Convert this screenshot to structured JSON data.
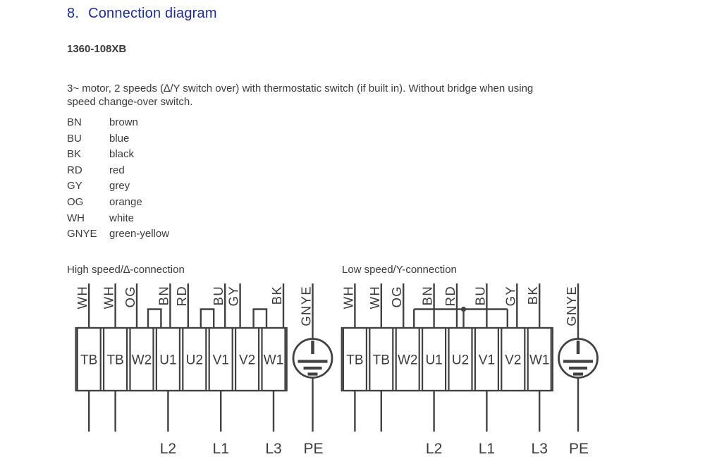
{
  "title": {
    "number": "8.",
    "text": "Connection diagram"
  },
  "model": "1360-108XB",
  "description": "3~ motor, 2 speeds (∆/Y switch over) with thermostatic switch (if built in). Without bridge when using speed change-over switch.",
  "legend": [
    {
      "code": "BN",
      "name": "brown"
    },
    {
      "code": "BU",
      "name": "blue"
    },
    {
      "code": "BK",
      "name": "black"
    },
    {
      "code": "RD",
      "name": "red"
    },
    {
      "code": "GY",
      "name": "grey"
    },
    {
      "code": "OG",
      "name": "orange"
    },
    {
      "code": "WH",
      "name": "white"
    },
    {
      "code": "GNYE",
      "name": "green-yellow"
    }
  ],
  "colors": {
    "accent_blue": "#1b2da0",
    "text": "#3b3b3b",
    "line": "#414141"
  },
  "diagrams": [
    {
      "heading": "High speed/∆-connection",
      "connection": "delta",
      "terminals": [
        "TB",
        "TB",
        "W2",
        "U1",
        "U2",
        "V1",
        "V2",
        "W1"
      ],
      "wire_labels": [
        "WH",
        "WH",
        "OG",
        "BN",
        "RD",
        "BU",
        "GY",
        "BK"
      ],
      "bridges": [
        [
          "W2",
          "U1"
        ],
        [
          "U2",
          "V1"
        ],
        [
          "V2",
          "W1"
        ]
      ],
      "earth": {
        "wire_label": "GNYE",
        "pe_label": "PE"
      },
      "bottom_labels": [
        {
          "terminal": "U1",
          "label": "L2"
        },
        {
          "terminal": "V1",
          "label": "L1"
        },
        {
          "terminal": "W1",
          "label": "L3"
        }
      ]
    },
    {
      "heading": "Low speed/Y-connection",
      "connection": "star",
      "terminals": [
        "TB",
        "TB",
        "W2",
        "U1",
        "U2",
        "V1",
        "V2",
        "W1"
      ],
      "wire_labels": [
        "WH",
        "WH",
        "OG",
        "BN",
        "RD",
        "BU",
        "GY",
        "BK"
      ],
      "star_bus": {
        "terminals": [
          "W2",
          "U2",
          "V2"
        ],
        "junction_dot": "U2"
      },
      "earth": {
        "wire_label": "GNYE",
        "pe_label": "PE"
      },
      "bottom_labels": [
        {
          "terminal": "U1",
          "label": "L2"
        },
        {
          "terminal": "V1",
          "label": "L1"
        },
        {
          "terminal": "W1",
          "label": "L3"
        }
      ]
    }
  ]
}
